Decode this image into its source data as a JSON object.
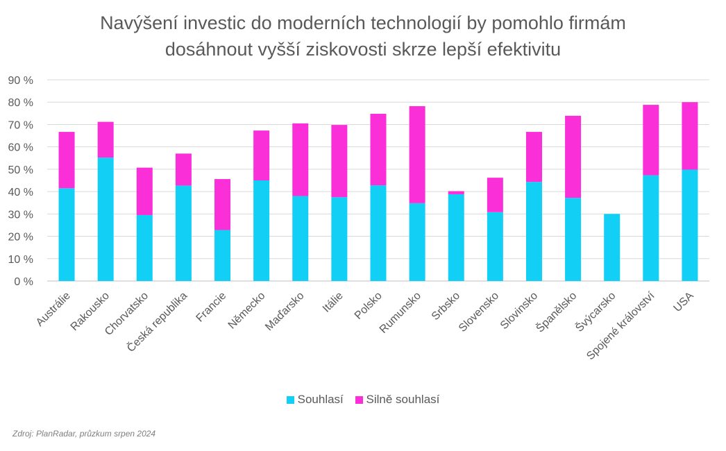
{
  "chart_data": {
    "type": "bar",
    "stacked": true,
    "title_lines": [
      "Navýšení investic do moderních technologií by pomohlo firmám",
      "dosáhnout vyšší ziskovosti skrze lepší efektivitu"
    ],
    "categories": [
      "Austrálie",
      "Rakousko",
      "Chorvatsko",
      "Česká republika",
      "Francie",
      "Německo",
      "Maďarsko",
      "Itálie",
      "Polsko",
      "Rumunsko",
      "Srbsko",
      "Slovensko",
      "Slovinsko",
      "Španělsko",
      "Švýcarsko",
      "Spojené království",
      "USA"
    ],
    "series": [
      {
        "name": "Souhlasí",
        "color": "#12CFF5",
        "values": [
          41.5,
          55.2,
          29.5,
          42.7,
          22.8,
          45.0,
          38.0,
          37.5,
          42.8,
          34.8,
          38.8,
          30.8,
          44.3,
          37.2,
          30.0,
          47.3,
          49.8
        ]
      },
      {
        "name": "Silně souhlasí",
        "color": "#FB2FD8",
        "values": [
          25.2,
          16.0,
          21.2,
          14.3,
          22.8,
          22.3,
          32.5,
          32.3,
          32.0,
          43.4,
          1.4,
          15.4,
          22.4,
          36.7,
          0.0,
          31.5,
          30.2
        ]
      }
    ],
    "ylim": [
      0,
      90
    ],
    "yticks": [
      "0 %",
      "10 %",
      "20 %",
      "30 %",
      "40 %",
      "50 %",
      "60 %",
      "70 %",
      "80 %",
      "90 %"
    ],
    "grid": true,
    "legend_position": "bottom"
  },
  "source": "Zdroj: PlanRadar, průzkum srpen 2024"
}
